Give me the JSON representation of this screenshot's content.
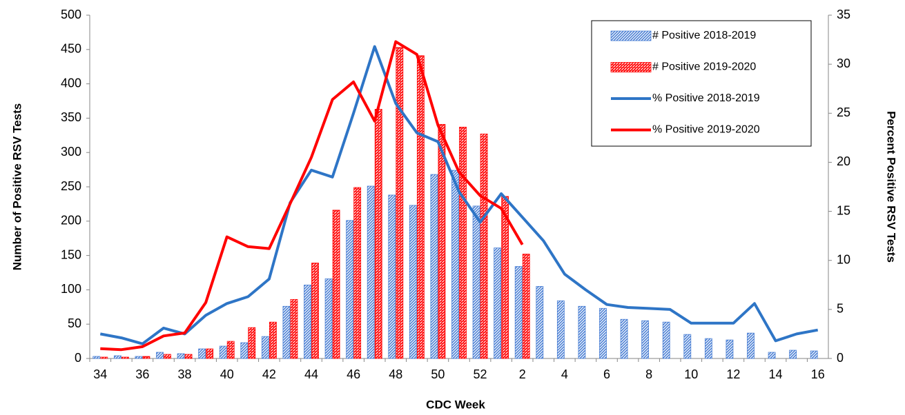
{
  "chart_data": {
    "type": "combo",
    "x_label": "CDC Week",
    "y_label": "Number of Positive RSV Tests",
    "y2_label": "Percent Positive RSV Tests",
    "categories": [
      34,
      null,
      36,
      null,
      38,
      null,
      40,
      null,
      42,
      null,
      44,
      null,
      46,
      null,
      48,
      null,
      50,
      null,
      52,
      null,
      2,
      null,
      4,
      null,
      6,
      null,
      8,
      null,
      10,
      null,
      12,
      null,
      14,
      null,
      16
    ],
    "ylim": [
      0,
      500
    ],
    "yticks": [
      0,
      50,
      100,
      150,
      200,
      250,
      300,
      350,
      400,
      450,
      500
    ],
    "y2lim": [
      0,
      35
    ],
    "y2ticks": [
      0,
      5,
      10,
      15,
      20,
      25,
      30,
      35
    ],
    "grid": false,
    "legend": "upper right",
    "series": [
      {
        "name": "# Positive 2018-2019",
        "type": "bar",
        "color": "#4a7fd4",
        "values": [
          3,
          4,
          3,
          9,
          7,
          14,
          18,
          23,
          32,
          76,
          107,
          116,
          201,
          251,
          238,
          223,
          268,
          274,
          222,
          161,
          134,
          105,
          84,
          76,
          73,
          57,
          55,
          53,
          35,
          29,
          27,
          37,
          9,
          12,
          11
        ]
      },
      {
        "name": "# Positive 2019-2020",
        "type": "bar",
        "color": "#ff0000",
        "values": [
          2,
          2,
          3,
          6,
          6,
          14,
          25,
          45,
          53,
          86,
          139,
          216,
          249,
          363,
          453,
          441,
          341,
          337,
          327,
          236,
          152,
          null,
          null,
          null,
          null,
          null,
          null,
          null,
          null,
          null,
          null,
          null,
          null,
          null,
          null
        ]
      },
      {
        "name": "% Positive 2018-2019",
        "type": "line",
        "axis": "y2",
        "color": "#2e75c6",
        "values": [
          2.5,
          2.1,
          1.5,
          3.1,
          2.5,
          4.4,
          5.6,
          6.3,
          8.1,
          15.9,
          19.2,
          18.5,
          25,
          31.8,
          26,
          23,
          22.1,
          17,
          13.9,
          16.8,
          14.4,
          12,
          8.6,
          7,
          5.5,
          5.2,
          5.1,
          5,
          3.6,
          3.6,
          3.6,
          5.6,
          1.8,
          2.5,
          2.9
        ]
      },
      {
        "name": "% Positive 2019-2020",
        "type": "line",
        "axis": "y2",
        "color": "#ff0000",
        "values": [
          1,
          0.9,
          1.2,
          2.3,
          2.6,
          5.7,
          12.4,
          11.4,
          11.2,
          15.8,
          20.5,
          26.4,
          28.2,
          24.2,
          32.3,
          31,
          23.8,
          19,
          16.6,
          15.3,
          11.6,
          null,
          null,
          null,
          null,
          null,
          null,
          null,
          null,
          null,
          null,
          null,
          null,
          null,
          null
        ]
      }
    ]
  }
}
